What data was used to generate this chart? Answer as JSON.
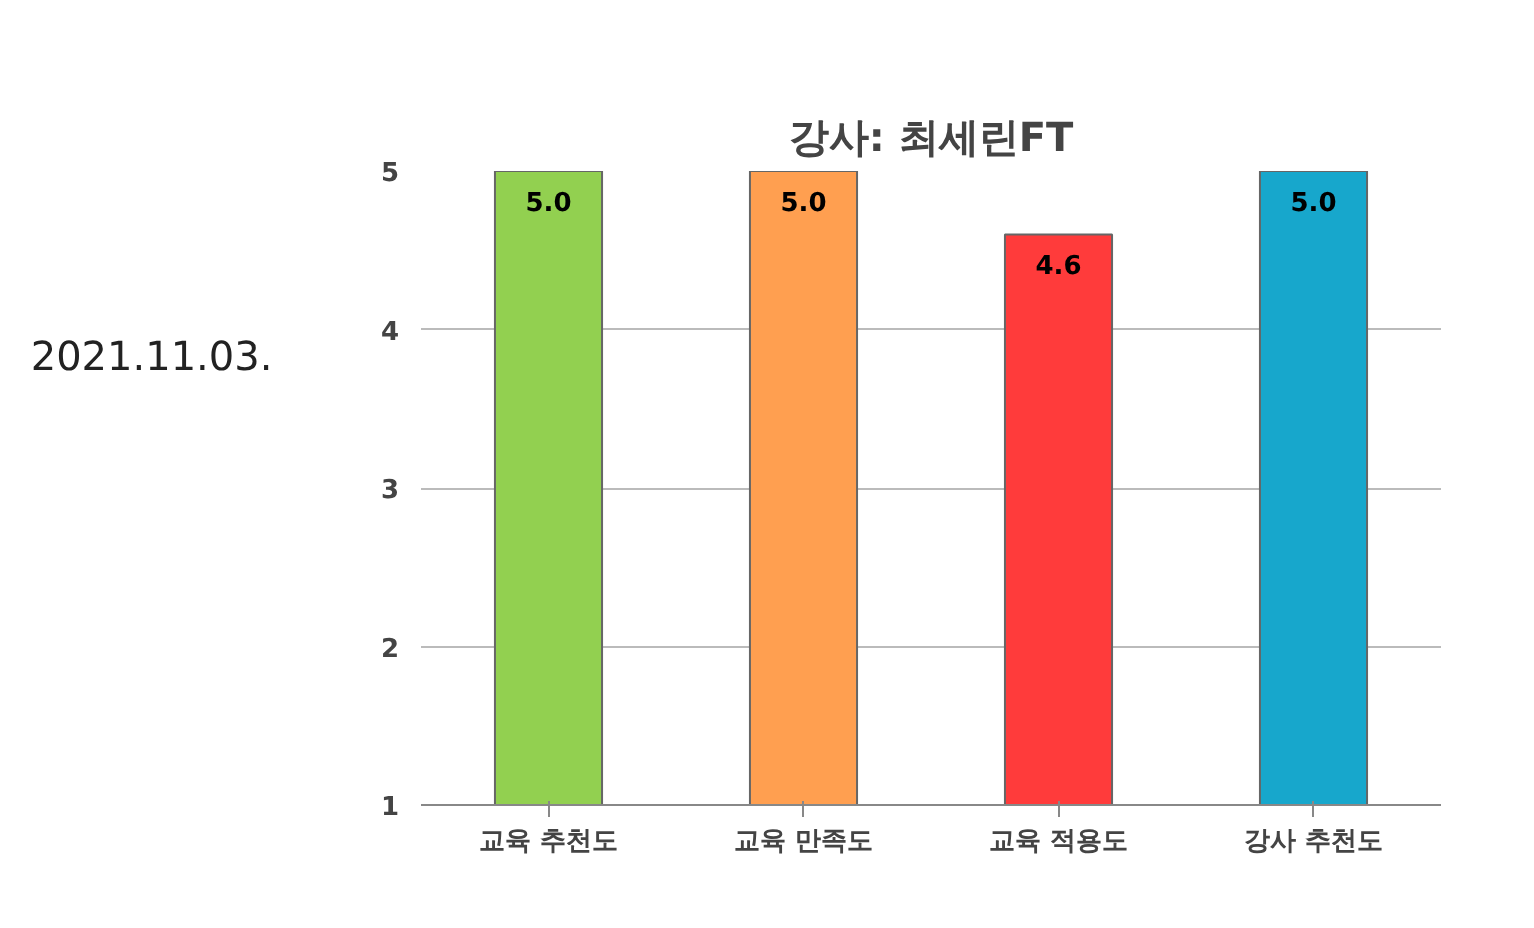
{
  "chart_data": {
    "type": "bar",
    "title": "강사: 최세린FT",
    "categories": [
      "교육 추천도",
      "교육 만족도",
      "교육 적용도",
      "강사 추천도"
    ],
    "values": [
      5.0,
      5.0,
      4.6,
      5.0
    ],
    "colors": [
      "#92d050",
      "#ff9f50",
      "#ff3b3b",
      "#17a7cc"
    ],
    "ylim": [
      1,
      5
    ],
    "yticks": [
      1,
      2,
      3,
      4,
      5
    ],
    "grid": "y",
    "value_labels": [
      "5.0",
      "5.0",
      "4.6",
      "5.0"
    ],
    "annotations": [
      "2021.11.03."
    ]
  }
}
